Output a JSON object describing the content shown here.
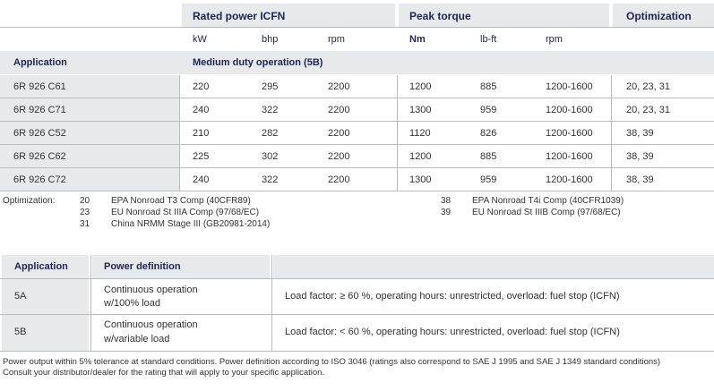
{
  "engine_table": {
    "groups": {
      "rated_power": "Rated power ICFN",
      "peak_torque": "Peak torque",
      "optimization": "Optimization"
    },
    "units": {
      "kw": "kW",
      "bhp": "bhp",
      "rpm1": "rpm",
      "nm": "Nm",
      "lbft": "lb-ft",
      "rpm2": "rpm"
    },
    "application_header": "Application",
    "duty_label": "Medium duty operation (5B)",
    "rows": [
      {
        "app": "6R 926 C61",
        "kw": "220",
        "bhp": "295",
        "rpm": "2200",
        "nm": "1200",
        "lbft": "885",
        "trpm": "1200-1600",
        "opt": "20, 23, 31"
      },
      {
        "app": "6R 926 C71",
        "kw": "240",
        "bhp": "322",
        "rpm": "2200",
        "nm": "1300",
        "lbft": "959",
        "trpm": "1200-1600",
        "opt": "20, 23, 31"
      },
      {
        "app": "6R 926 C52",
        "kw": "210",
        "bhp": "282",
        "rpm": "2200",
        "nm": "1120",
        "lbft": "826",
        "trpm": "1200-1600",
        "opt": "38, 39"
      },
      {
        "app": "6R 926 C62",
        "kw": "225",
        "bhp": "302",
        "rpm": "2200",
        "nm": "1200",
        "lbft": "885",
        "trpm": "1200-1600",
        "opt": "38, 39"
      },
      {
        "app": "6R 926 C72",
        "kw": "240",
        "bhp": "322",
        "rpm": "2200",
        "nm": "1300",
        "lbft": "959",
        "trpm": "1200-1600",
        "opt": "38, 39"
      }
    ]
  },
  "optimization_legend": {
    "label": "Optimization:",
    "left": [
      {
        "code": "20",
        "text": "EPA Nonroad T3 Comp (40CFR89)"
      },
      {
        "code": "23",
        "text": "EU Nonroad St IIIA Comp (97/68/EC)"
      },
      {
        "code": "31",
        "text": "China NRMM Stage III (GB20981-2014)"
      }
    ],
    "right": [
      {
        "code": "38",
        "text": "EPA Nonroad T4i Comp (40CFR1039)"
      },
      {
        "code": "39",
        "text": "EU Nonroad St IIIB Comp (97/68/EC)"
      }
    ]
  },
  "power_table": {
    "headers": {
      "application": "Application",
      "definition": "Power definition"
    },
    "rows": [
      {
        "app": "5A",
        "def1": "Continuous operation",
        "def2": "w/100% load",
        "detail": "Load factor: ≥ 60 %, operating hours: unrestricted, overload: fuel stop (ICFN)"
      },
      {
        "app": "5B",
        "def1": "Continuous operation",
        "def2": "w/variable load",
        "detail": "Load factor: < 60 %, operating hours: unrestricted, overload: fuel stop (ICFN)"
      }
    ]
  },
  "footnote": {
    "line1": "Power output within 5% tolerance at standard conditions. Power definition according to ISO 3046 (ratings also correspond to SAE J 1995 and SAE J 1349 standard conditions)",
    "line2": "Consult your distributor/dealer for the rating that will apply to your specific application."
  },
  "colors": {
    "header_bg": "#e8e9eb",
    "header_text": "#1f2455",
    "body_text": "#333333",
    "rule": "#b9bcc4"
  }
}
